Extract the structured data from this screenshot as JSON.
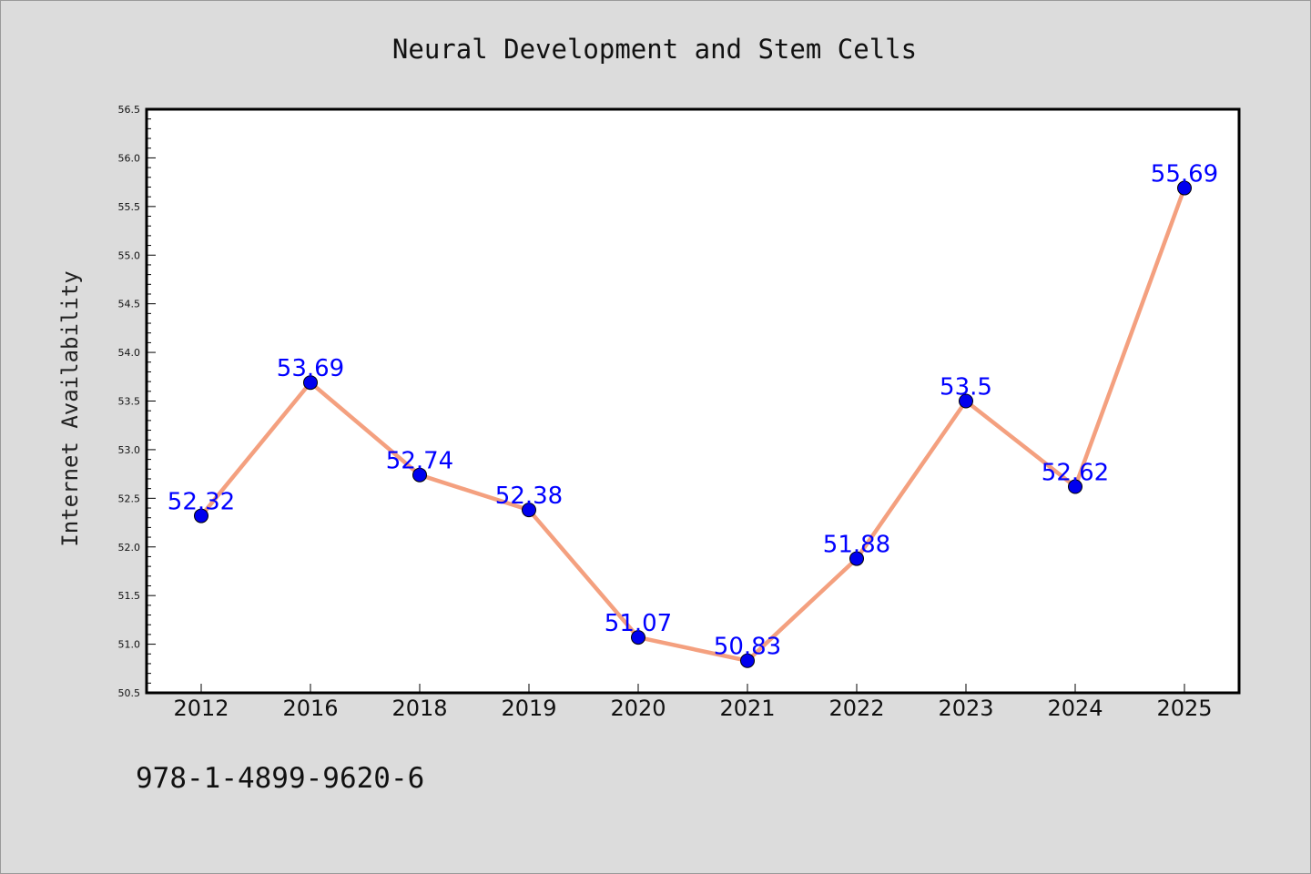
{
  "chart_data": {
    "type": "line",
    "title": "Neural Development and Stem Cells",
    "xlabel": "",
    "ylabel": "Internet Availability",
    "categories": [
      "2012",
      "2016",
      "2018",
      "2019",
      "2020",
      "2021",
      "2022",
      "2023",
      "2024",
      "2025"
    ],
    "series": [
      {
        "values": [
          52.32,
          53.69,
          52.74,
          52.38,
          51.07,
          50.83,
          51.88,
          53.5,
          52.62,
          55.69
        ]
      }
    ],
    "data_labels": [
      "52.32",
      "53.69",
      "52.74",
      "52.38",
      "51.07",
      "50.83",
      "51.88",
      "53.5",
      "52.62",
      "55.69"
    ],
    "ylim": [
      50.5,
      56.5
    ],
    "yticks": [
      "50.5",
      "51.0",
      "51.5",
      "52.0",
      "52.5",
      "53.0",
      "53.5",
      "54.0",
      "54.5",
      "55.0",
      "55.5",
      "56.0",
      "56.5"
    ],
    "grid": false,
    "legend": "none",
    "line_color": "#f4a07f",
    "marker_color": "#0000ee",
    "label_color": "#0000ff",
    "background_color": "#dcdcdc",
    "plot_background_color": "#ffffff"
  },
  "footer": {
    "isbn": "978-1-4899-9620-6"
  }
}
